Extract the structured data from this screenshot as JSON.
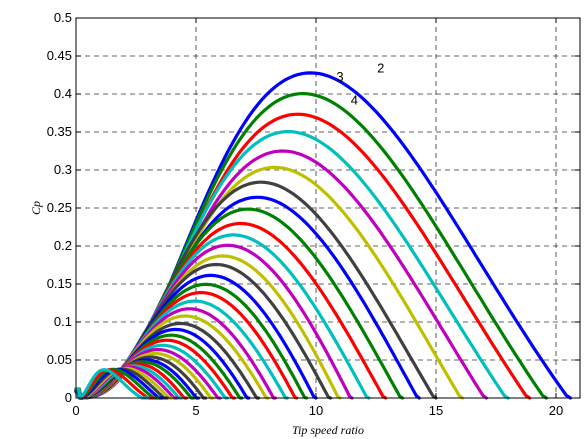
{
  "chart_data": {
    "type": "line",
    "title": "",
    "xlabel": "Tip speed ratio",
    "ylabel": "Cp",
    "xlim": [
      0,
      21
    ],
    "ylim": [
      0,
      0.5
    ],
    "xticks": [
      0,
      5,
      10,
      15,
      20
    ],
    "yticks": [
      0,
      0.05,
      0.1,
      0.15,
      0.2,
      0.25,
      0.3,
      0.35,
      0.4,
      0.45,
      0.5
    ],
    "grid": true,
    "annotations": [
      {
        "text": "2",
        "x": 12.7,
        "y": 0.428
      },
      {
        "text": "3",
        "x": 11.0,
        "y": 0.417
      },
      {
        "text": "4",
        "x": 11.6,
        "y": 0.386
      }
    ],
    "series_shape": "Cp = peak * ((x/xpeak)*exp(1-x/xpeak))^k - offset, clipped to [0,0.5] and x < xend",
    "colors": [
      "#0000ff",
      "#008000",
      "#ff0000",
      "#00bfbf",
      "#bf00bf",
      "#bfbf00",
      "#404040"
    ],
    "series": [
      {
        "peak": 0.435,
        "xpeak": 10.0,
        "xend": 20.6
      },
      {
        "peak": 0.408,
        "xpeak": 9.7,
        "xend": 19.6
      },
      {
        "peak": 0.381,
        "xpeak": 9.5,
        "xend": 18.9
      },
      {
        "peak": 0.358,
        "xpeak": 9.1,
        "xend": 18.0
      },
      {
        "peak": 0.333,
        "xpeak": 8.9,
        "xend": 17.1
      },
      {
        "peak": 0.312,
        "xpeak": 8.6,
        "xend": 16.1
      },
      {
        "peak": 0.292,
        "xpeak": 8.0,
        "xend": 15.0
      },
      {
        "peak": 0.273,
        "xpeak": 7.9,
        "xend": 14.3
      },
      {
        "peak": 0.257,
        "xpeak": 7.5,
        "xend": 13.6
      },
      {
        "peak": 0.238,
        "xpeak": 7.2,
        "xend": 12.9
      },
      {
        "peak": 0.223,
        "xpeak": 6.9,
        "xend": 12.2
      },
      {
        "peak": 0.21,
        "xpeak": 6.7,
        "xend": 11.5
      },
      {
        "peak": 0.196,
        "xpeak": 6.5,
        "xend": 11.0
      },
      {
        "peak": 0.184,
        "xpeak": 6.2,
        "xend": 10.6
      },
      {
        "peak": 0.17,
        "xpeak": 6.0,
        "xend": 10.0
      },
      {
        "peak": 0.158,
        "xpeak": 5.8,
        "xend": 9.6
      },
      {
        "peak": 0.147,
        "xpeak": 5.6,
        "xend": 9.2
      },
      {
        "peak": 0.135,
        "xpeak": 5.3,
        "xend": 8.8
      },
      {
        "peak": 0.125,
        "xpeak": 5.1,
        "xend": 8.3
      },
      {
        "peak": 0.115,
        "xpeak": 4.9,
        "xend": 8.0
      },
      {
        "peak": 0.105,
        "xpeak": 4.7,
        "xend": 7.6
      },
      {
        "peak": 0.097,
        "xpeak": 4.5,
        "xend": 7.2
      },
      {
        "peak": 0.089,
        "xpeak": 4.3,
        "xend": 6.9
      },
      {
        "peak": 0.082,
        "xpeak": 4.1,
        "xend": 6.6
      },
      {
        "peak": 0.075,
        "xpeak": 3.9,
        "xend": 6.3
      },
      {
        "peak": 0.069,
        "xpeak": 3.7,
        "xend": 6.0
      },
      {
        "peak": 0.064,
        "xpeak": 3.6,
        "xend": 5.7
      },
      {
        "peak": 0.059,
        "xpeak": 3.4,
        "xend": 5.4
      },
      {
        "peak": 0.055,
        "xpeak": 3.2,
        "xend": 5.1
      },
      {
        "peak": 0.052,
        "xpeak": 3.0,
        "xend": 4.9
      },
      {
        "peak": 0.049,
        "xpeak": 2.8,
        "xend": 4.6
      },
      {
        "peak": 0.046,
        "xpeak": 2.6,
        "xend": 4.4
      },
      {
        "peak": 0.044,
        "xpeak": 2.4,
        "xend": 4.2
      },
      {
        "peak": 0.042,
        "xpeak": 2.2,
        "xend": 4.0
      },
      {
        "peak": 0.041,
        "xpeak": 2.0,
        "xend": 3.8
      },
      {
        "peak": 0.04,
        "xpeak": 1.8,
        "xend": 3.6
      },
      {
        "peak": 0.04,
        "xpeak": 1.6,
        "xend": 3.4
      },
      {
        "peak": 0.039,
        "xpeak": 1.4,
        "xend": 3.2
      },
      {
        "peak": 0.039,
        "xpeak": 1.2,
        "xend": 3.0
      }
    ]
  }
}
